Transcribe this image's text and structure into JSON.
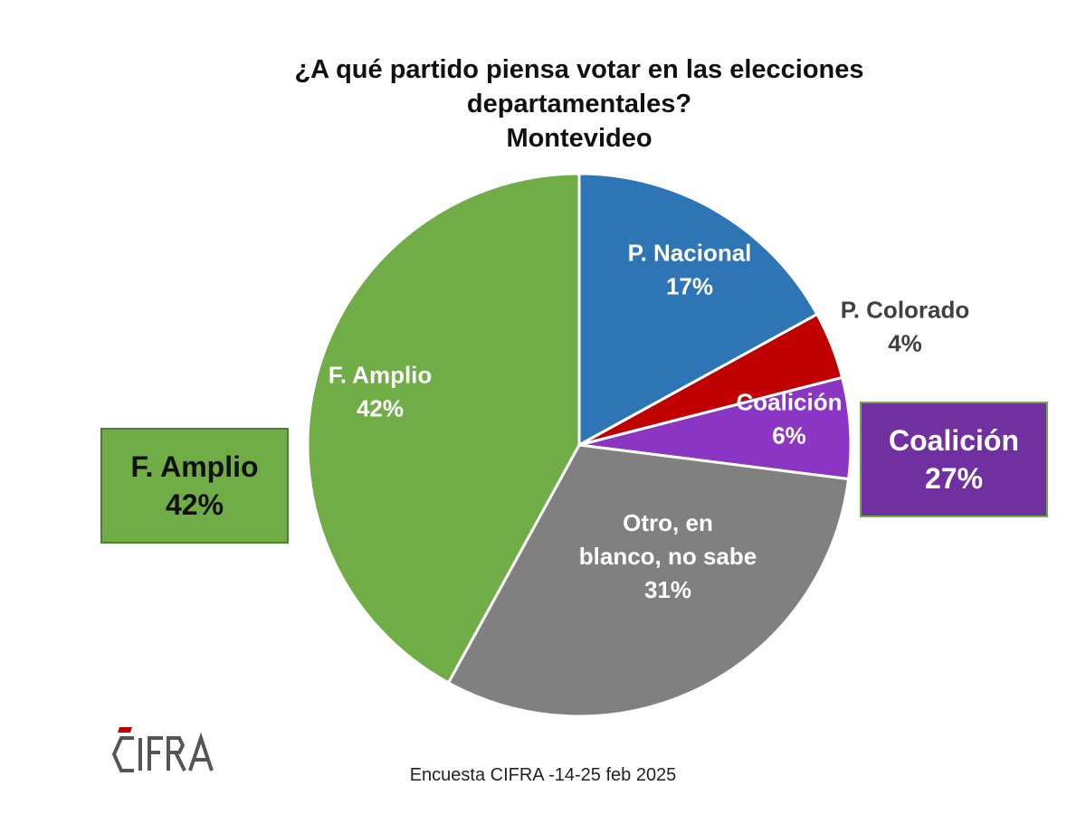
{
  "chart_data": {
    "type": "pie",
    "title": [
      "¿A qué partido piensa votar en las elecciones",
      "departamentales?",
      "Montevideo"
    ],
    "slices": [
      {
        "label_lines": [
          "P. Nacional",
          "17%"
        ],
        "value": 17,
        "color": "#2e75b6",
        "text_color": "#ffffff",
        "label_inside": true
      },
      {
        "label_lines": [
          "P. Colorado",
          "4%"
        ],
        "value": 4,
        "color": "#c00000",
        "text_color": "#404040",
        "label_inside": false
      },
      {
        "label_lines": [
          "Coalición",
          "6%"
        ],
        "value": 6,
        "color": "#8b35c4",
        "text_color": "#ffffff",
        "label_inside": true
      },
      {
        "label_lines": [
          "Otro, en",
          "blanco, no sabe",
          "31%"
        ],
        "value": 31,
        "color": "#808080",
        "text_color": "#ffffff",
        "label_inside": true
      },
      {
        "label_lines": [
          "F. Amplio",
          "42%"
        ],
        "value": 42,
        "color": "#70ad47",
        "text_color": "#ffffff",
        "label_inside": true
      }
    ],
    "start_angle": "12 o'clock",
    "direction": "clockwise",
    "callouts": [
      {
        "label": "F. Amplio",
        "value": "42%",
        "color": "#70ad47",
        "position": "left"
      },
      {
        "label": "Coalición",
        "value": "27%",
        "color": "#7030a0",
        "position": "right"
      }
    ]
  },
  "source": "Encuesta CIFRA -14-25 feb 2025",
  "logo": {
    "text": "CIFRA",
    "accent_color": "#c00000"
  }
}
